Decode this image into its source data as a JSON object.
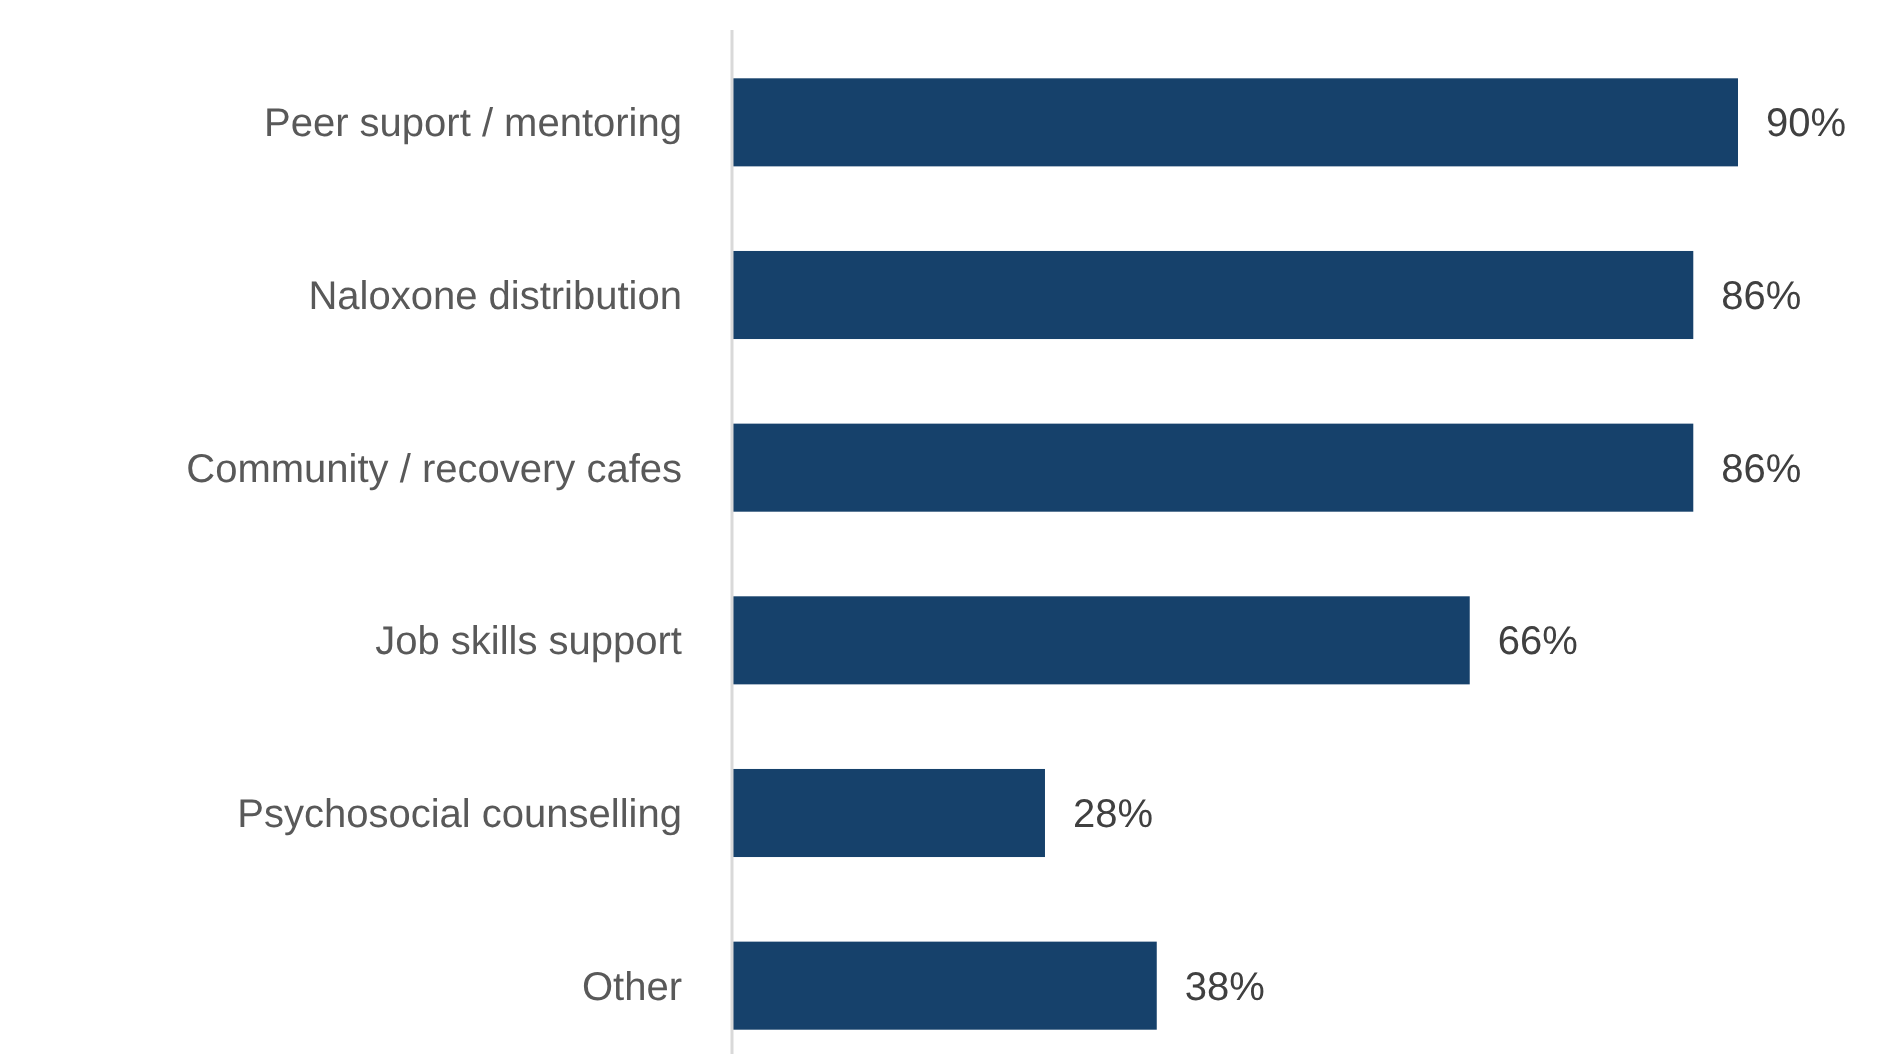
{
  "chart_data": {
    "type": "bar",
    "orientation": "horizontal",
    "categories": [
      "Peer suport / mentoring",
      "Naloxone distribution",
      "Community / recovery cafes",
      "Job skills support",
      "Psychosocial counselling",
      "Other"
    ],
    "values": [
      90,
      86,
      86,
      66,
      28,
      38
    ],
    "value_labels": [
      "90%",
      "86%",
      "86%",
      "66%",
      "28%",
      "38%"
    ],
    "color": "#16416b"
  }
}
